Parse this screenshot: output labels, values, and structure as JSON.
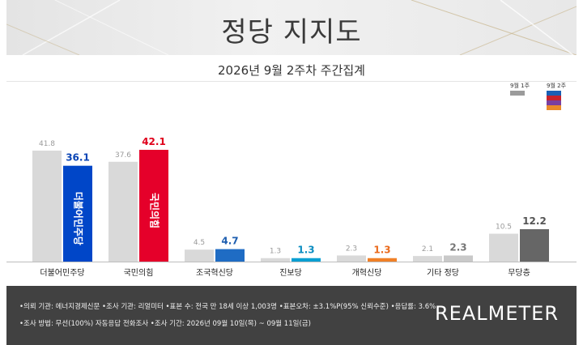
{
  "title": "정당 지지도",
  "subtitle": "2026년 9월 2주차 주간집계",
  "legend": {
    "prev_label": "9월 1주",
    "curr_label": "9월 2주",
    "prev_color": "#9b9b9b",
    "curr_colors": [
      "#1a5fb4",
      "#c7222b",
      "#7a3fa0",
      "#ea8a2a"
    ]
  },
  "chart_data": {
    "type": "bar",
    "categories": [
      "더불어민주당",
      "국민의힘",
      "조국혁신당",
      "진보당",
      "개혁신당",
      "기타 정당",
      "무당층"
    ],
    "series": [
      {
        "name": "9월 1주",
        "values": [
          41.8,
          37.6,
          4.5,
          1.3,
          2.3,
          2.1,
          10.5
        ]
      },
      {
        "name": "9월 2주",
        "values": [
          36.1,
          42.1,
          4.7,
          1.3,
          1.3,
          2.3,
          12.2
        ]
      }
    ],
    "prev_color": "#d9d9d9",
    "curr_colors": [
      "#0046c8",
      "#e5002a",
      "#1f6cc4",
      "#0a9fd2",
      "#f08027",
      "#c9c9c9",
      "#666666"
    ],
    "curr_label_colors": [
      "#0b45b5",
      "#e0001b",
      "#1f5fb0",
      "#0a8cc0",
      "#ea6a1c",
      "#777777",
      "#555555"
    ],
    "ylim": [
      0,
      45
    ],
    "party_logos": {
      "0": "더불어민주당",
      "1": "국민의힘"
    }
  },
  "footer": {
    "line1": "•의뢰 기관: 에너지경제신문  •조사 기관: 리얼미터  •표본 수: 전국 만 18세 이상 1,003명  •표본오차: ±3.1%P(95% 신뢰수준)  •응답률: 3.6%",
    "line2": "•조사 방법: 무선(100%) 자동응답 전화조사  •조사 기간: 2026년 09월 10일(목) ~ 09월 11일(금)",
    "logo": "REALMETER"
  }
}
